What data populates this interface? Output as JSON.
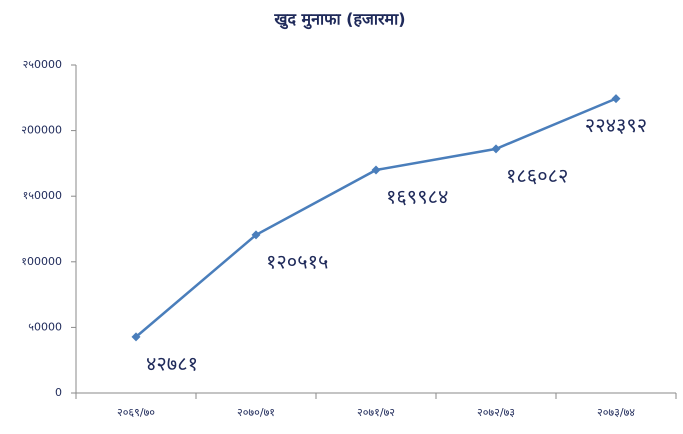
{
  "chart_data": {
    "type": "line",
    "title": "खुद मुनाफा (हजारमा)",
    "categories": [
      "२०६९/७०",
      "२०७०/७१",
      "२०७१/७२",
      "२०७२/७३",
      "२०७३/७४"
    ],
    "values": [
      42781,
      120515,
      169984,
      186082,
      224392
    ],
    "value_labels": [
      "४२७८१",
      "१२०५१५",
      "१६९९८४",
      "१८६०८२",
      "२२४३९२"
    ],
    "color": "#4a7ebb",
    "ylim": [
      0,
      250000
    ],
    "yticks": [
      0,
      {
        "value": 50000,
        "label": "५0000"
      },
      {
        "value": 100000,
        "label": "१00000"
      },
      {
        "value": 150000,
        "label": "१५0000"
      },
      {
        "value": 200000,
        "label": "२00000"
      },
      {
        "value": 250000,
        "label": "२५0000"
      }
    ],
    "grid": false
  }
}
